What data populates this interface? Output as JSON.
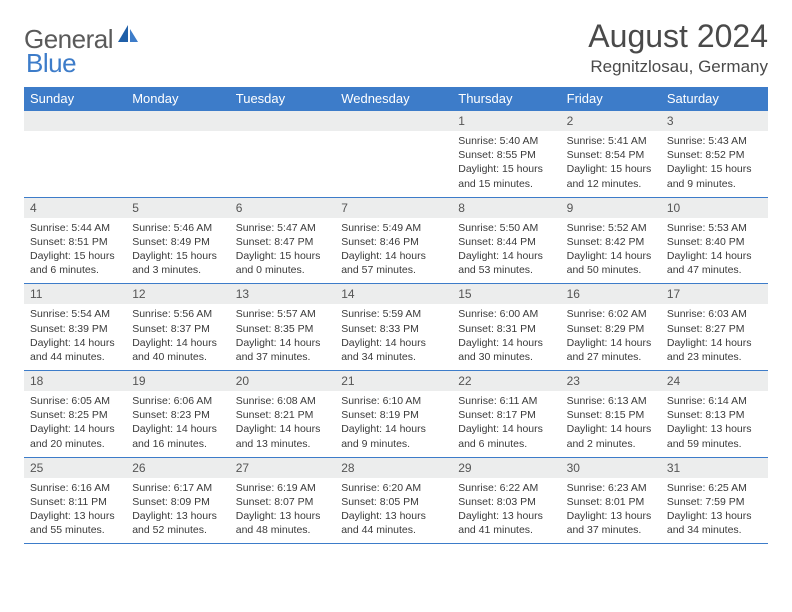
{
  "logo": {
    "general": "General",
    "blue": "Blue"
  },
  "title": "August 2024",
  "location": "Regnitzlosau, Germany",
  "colors": {
    "header_bg": "#3d7cc9",
    "header_text": "#ffffff",
    "daynum_bg": "#eceded",
    "border": "#3d7cc9",
    "body_text": "#3a3a3a",
    "title_text": "#4a4a4a"
  },
  "day_names": [
    "Sunday",
    "Monday",
    "Tuesday",
    "Wednesday",
    "Thursday",
    "Friday",
    "Saturday"
  ],
  "weeks": [
    [
      {
        "n": "",
        "sr": "",
        "ss": "",
        "dl": ""
      },
      {
        "n": "",
        "sr": "",
        "ss": "",
        "dl": ""
      },
      {
        "n": "",
        "sr": "",
        "ss": "",
        "dl": ""
      },
      {
        "n": "",
        "sr": "",
        "ss": "",
        "dl": ""
      },
      {
        "n": "1",
        "sr": "Sunrise: 5:40 AM",
        "ss": "Sunset: 8:55 PM",
        "dl": "Daylight: 15 hours and 15 minutes."
      },
      {
        "n": "2",
        "sr": "Sunrise: 5:41 AM",
        "ss": "Sunset: 8:54 PM",
        "dl": "Daylight: 15 hours and 12 minutes."
      },
      {
        "n": "3",
        "sr": "Sunrise: 5:43 AM",
        "ss": "Sunset: 8:52 PM",
        "dl": "Daylight: 15 hours and 9 minutes."
      }
    ],
    [
      {
        "n": "4",
        "sr": "Sunrise: 5:44 AM",
        "ss": "Sunset: 8:51 PM",
        "dl": "Daylight: 15 hours and 6 minutes."
      },
      {
        "n": "5",
        "sr": "Sunrise: 5:46 AM",
        "ss": "Sunset: 8:49 PM",
        "dl": "Daylight: 15 hours and 3 minutes."
      },
      {
        "n": "6",
        "sr": "Sunrise: 5:47 AM",
        "ss": "Sunset: 8:47 PM",
        "dl": "Daylight: 15 hours and 0 minutes."
      },
      {
        "n": "7",
        "sr": "Sunrise: 5:49 AM",
        "ss": "Sunset: 8:46 PM",
        "dl": "Daylight: 14 hours and 57 minutes."
      },
      {
        "n": "8",
        "sr": "Sunrise: 5:50 AM",
        "ss": "Sunset: 8:44 PM",
        "dl": "Daylight: 14 hours and 53 minutes."
      },
      {
        "n": "9",
        "sr": "Sunrise: 5:52 AM",
        "ss": "Sunset: 8:42 PM",
        "dl": "Daylight: 14 hours and 50 minutes."
      },
      {
        "n": "10",
        "sr": "Sunrise: 5:53 AM",
        "ss": "Sunset: 8:40 PM",
        "dl": "Daylight: 14 hours and 47 minutes."
      }
    ],
    [
      {
        "n": "11",
        "sr": "Sunrise: 5:54 AM",
        "ss": "Sunset: 8:39 PM",
        "dl": "Daylight: 14 hours and 44 minutes."
      },
      {
        "n": "12",
        "sr": "Sunrise: 5:56 AM",
        "ss": "Sunset: 8:37 PM",
        "dl": "Daylight: 14 hours and 40 minutes."
      },
      {
        "n": "13",
        "sr": "Sunrise: 5:57 AM",
        "ss": "Sunset: 8:35 PM",
        "dl": "Daylight: 14 hours and 37 minutes."
      },
      {
        "n": "14",
        "sr": "Sunrise: 5:59 AM",
        "ss": "Sunset: 8:33 PM",
        "dl": "Daylight: 14 hours and 34 minutes."
      },
      {
        "n": "15",
        "sr": "Sunrise: 6:00 AM",
        "ss": "Sunset: 8:31 PM",
        "dl": "Daylight: 14 hours and 30 minutes."
      },
      {
        "n": "16",
        "sr": "Sunrise: 6:02 AM",
        "ss": "Sunset: 8:29 PM",
        "dl": "Daylight: 14 hours and 27 minutes."
      },
      {
        "n": "17",
        "sr": "Sunrise: 6:03 AM",
        "ss": "Sunset: 8:27 PM",
        "dl": "Daylight: 14 hours and 23 minutes."
      }
    ],
    [
      {
        "n": "18",
        "sr": "Sunrise: 6:05 AM",
        "ss": "Sunset: 8:25 PM",
        "dl": "Daylight: 14 hours and 20 minutes."
      },
      {
        "n": "19",
        "sr": "Sunrise: 6:06 AM",
        "ss": "Sunset: 8:23 PM",
        "dl": "Daylight: 14 hours and 16 minutes."
      },
      {
        "n": "20",
        "sr": "Sunrise: 6:08 AM",
        "ss": "Sunset: 8:21 PM",
        "dl": "Daylight: 14 hours and 13 minutes."
      },
      {
        "n": "21",
        "sr": "Sunrise: 6:10 AM",
        "ss": "Sunset: 8:19 PM",
        "dl": "Daylight: 14 hours and 9 minutes."
      },
      {
        "n": "22",
        "sr": "Sunrise: 6:11 AM",
        "ss": "Sunset: 8:17 PM",
        "dl": "Daylight: 14 hours and 6 minutes."
      },
      {
        "n": "23",
        "sr": "Sunrise: 6:13 AM",
        "ss": "Sunset: 8:15 PM",
        "dl": "Daylight: 14 hours and 2 minutes."
      },
      {
        "n": "24",
        "sr": "Sunrise: 6:14 AM",
        "ss": "Sunset: 8:13 PM",
        "dl": "Daylight: 13 hours and 59 minutes."
      }
    ],
    [
      {
        "n": "25",
        "sr": "Sunrise: 6:16 AM",
        "ss": "Sunset: 8:11 PM",
        "dl": "Daylight: 13 hours and 55 minutes."
      },
      {
        "n": "26",
        "sr": "Sunrise: 6:17 AM",
        "ss": "Sunset: 8:09 PM",
        "dl": "Daylight: 13 hours and 52 minutes."
      },
      {
        "n": "27",
        "sr": "Sunrise: 6:19 AM",
        "ss": "Sunset: 8:07 PM",
        "dl": "Daylight: 13 hours and 48 minutes."
      },
      {
        "n": "28",
        "sr": "Sunrise: 6:20 AM",
        "ss": "Sunset: 8:05 PM",
        "dl": "Daylight: 13 hours and 44 minutes."
      },
      {
        "n": "29",
        "sr": "Sunrise: 6:22 AM",
        "ss": "Sunset: 8:03 PM",
        "dl": "Daylight: 13 hours and 41 minutes."
      },
      {
        "n": "30",
        "sr": "Sunrise: 6:23 AM",
        "ss": "Sunset: 8:01 PM",
        "dl": "Daylight: 13 hours and 37 minutes."
      },
      {
        "n": "31",
        "sr": "Sunrise: 6:25 AM",
        "ss": "Sunset: 7:59 PM",
        "dl": "Daylight: 13 hours and 34 minutes."
      }
    ]
  ]
}
